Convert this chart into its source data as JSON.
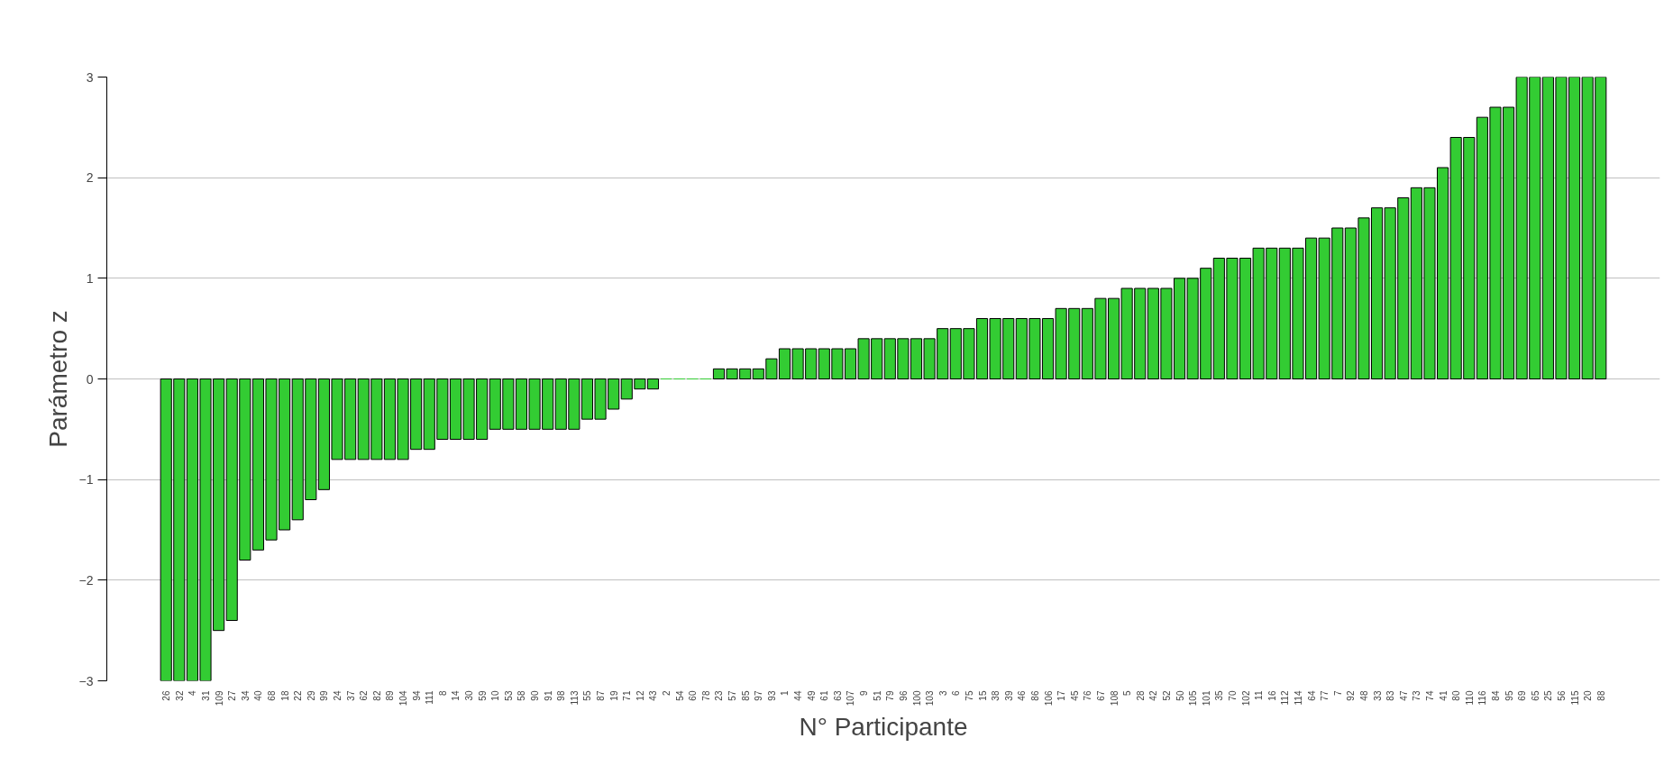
{
  "chart_data": {
    "type": "bar",
    "xlabel": "N° Participante",
    "ylabel": "Parámetro z",
    "categories": [
      "26",
      "32",
      "4",
      "31",
      "109",
      "27",
      "34",
      "40",
      "68",
      "18",
      "22",
      "29",
      "99",
      "24",
      "37",
      "62",
      "82",
      "89",
      "104",
      "94",
      "111",
      "8",
      "14",
      "30",
      "59",
      "10",
      "53",
      "58",
      "90",
      "91",
      "98",
      "113",
      "55",
      "87",
      "19",
      "71",
      "12",
      "43",
      "2",
      "54",
      "60",
      "78",
      "23",
      "57",
      "85",
      "97",
      "93",
      "1",
      "44",
      "49",
      "61",
      "63",
      "107",
      "9",
      "51",
      "79",
      "96",
      "100",
      "103",
      "3",
      "6",
      "75",
      "15",
      "38",
      "39",
      "46",
      "86",
      "106",
      "17",
      "45",
      "76",
      "67",
      "108",
      "5",
      "28",
      "42",
      "52",
      "50",
      "105",
      "101",
      "35",
      "70",
      "102",
      "11",
      "16",
      "112",
      "114",
      "64",
      "77",
      "7",
      "92",
      "48",
      "33",
      "83",
      "47",
      "73",
      "74",
      "41",
      "80",
      "110",
      "116",
      "84",
      "95",
      "69",
      "65",
      "25",
      "56",
      "115",
      "20",
      "88"
    ],
    "values": [
      -3,
      -3,
      -3,
      -3,
      -2.5,
      -2.4,
      -1.8,
      -1.7,
      -1.6,
      -1.5,
      -1.4,
      -1.2,
      -1.1,
      -0.8,
      -0.8,
      -0.8,
      -0.8,
      -0.8,
      -0.8,
      -0.7,
      -0.7,
      -0.6,
      -0.6,
      -0.6,
      -0.6,
      -0.5,
      -0.5,
      -0.5,
      -0.5,
      -0.5,
      -0.5,
      -0.5,
      -0.4,
      -0.4,
      -0.3,
      -0.2,
      -0.1,
      -0.1,
      0,
      0,
      0,
      0,
      0.1,
      0.1,
      0.1,
      0.1,
      0.2,
      0.3,
      0.3,
      0.3,
      0.3,
      0.3,
      0.3,
      0.4,
      0.4,
      0.4,
      0.4,
      0.4,
      0.4,
      0.5,
      0.5,
      0.5,
      0.6,
      0.6,
      0.6,
      0.6,
      0.6,
      0.6,
      0.7,
      0.7,
      0.7,
      0.8,
      0.8,
      0.9,
      0.9,
      0.9,
      0.9,
      1,
      1,
      1.1,
      1.2,
      1.2,
      1.2,
      1.3,
      1.3,
      1.3,
      1.3,
      1.4,
      1.4,
      1.5,
      1.5,
      1.6,
      1.7,
      1.7,
      1.8,
      1.9,
      1.9,
      2.1,
      2.4,
      2.4,
      2.6,
      2.7,
      2.7,
      3,
      3,
      3,
      3,
      3,
      3,
      3
    ],
    "color": "#33cc33",
    "ylim": [
      -3,
      3
    ],
    "yticks": [
      -3,
      -2,
      -1,
      0,
      1,
      2,
      3
    ],
    "grid": "y"
  }
}
